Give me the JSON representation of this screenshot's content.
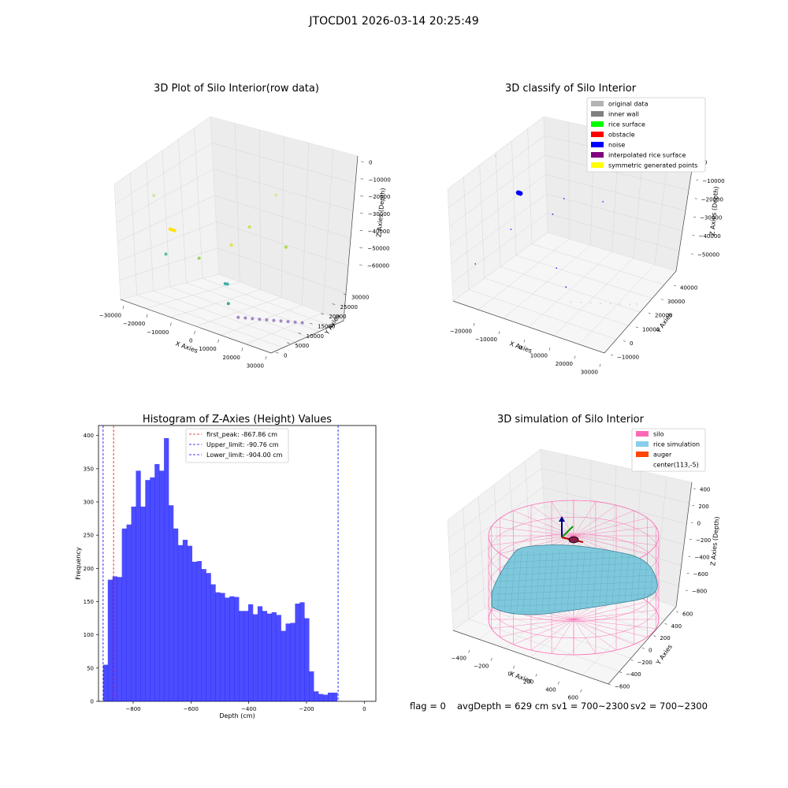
{
  "figure": {
    "suptitle": "JTOCD01 2026-03-14 20:25:49",
    "status": {
      "flag": "flag = 0",
      "avg": "avgDepth = 629 cm",
      "sv1": "sv1 = 700~2300",
      "sv2": "sv2 = 700~2300"
    }
  },
  "chart_data": [
    {
      "type": "scatter",
      "projection": "3d",
      "title": "3D Plot of Silo Interior(row data)",
      "xlabel": "X Axies",
      "ylabel": "Y Axies",
      "zlabel": "Z Axies (Depth)",
      "xticks": [
        "−30000",
        "−20000",
        "−10000",
        "0",
        "10000",
        "20000",
        "30000"
      ],
      "yticks": [
        "0",
        "5000",
        "10000",
        "15000",
        "20000",
        "25000",
        "30000"
      ],
      "zticks": [
        "0",
        "−10000",
        "−20000",
        "−30000",
        "−40000",
        "−50000",
        "−60000"
      ],
      "points": [
        {
          "x": -28000,
          "y": 12000,
          "z": -10000,
          "color": "#c9e6a0"
        },
        {
          "x": -25000,
          "y": 15000,
          "z": -30000,
          "color": "#ffe100"
        },
        {
          "x": -24500,
          "y": 15000,
          "z": -30000,
          "color": "#ffe100"
        },
        {
          "x": -24000,
          "y": 15000,
          "z": -30000,
          "color": "#ffe100"
        },
        {
          "x": -23500,
          "y": 15000,
          "z": -30000,
          "color": "#ffe100"
        },
        {
          "x": -23000,
          "y": 15000,
          "z": -30000,
          "color": "#ffe100"
        },
        {
          "x": -22000,
          "y": 10000,
          "z": -40000,
          "color": "#49b89a"
        },
        {
          "x": -12000,
          "y": 14000,
          "z": -40000,
          "color": "#8dd14a"
        },
        {
          "x": -2000,
          "y": 18000,
          "z": -30000,
          "color": "#dbe33a"
        },
        {
          "x": 2000,
          "y": 22000,
          "z": -20000,
          "color": "#c8e03c"
        },
        {
          "x": 10000,
          "y": 26000,
          "z": 0,
          "color": "#dde88a"
        },
        {
          "x": 12000,
          "y": 27000,
          "z": -30000,
          "color": "#a8d63f"
        },
        {
          "x": 3000,
          "y": 10000,
          "z": -45000,
          "color": "#2fa8a0"
        },
        {
          "x": 3800,
          "y": 10200,
          "z": -45000,
          "color": "#2fa8a0"
        },
        {
          "x": 5000,
          "y": 9000,
          "z": -55000,
          "color": "#26a080"
        },
        {
          "x": 10000,
          "y": 8000,
          "z": -60000,
          "color": "#9b7bbf"
        },
        {
          "x": 12000,
          "y": 9000,
          "z": -60000,
          "color": "#9b7bbf"
        },
        {
          "x": 14000,
          "y": 10000,
          "z": -60000,
          "color": "#9b7bbf"
        },
        {
          "x": 16000,
          "y": 11000,
          "z": -60000,
          "color": "#9b7bbf"
        },
        {
          "x": 18000,
          "y": 12000,
          "z": -60000,
          "color": "#9b7bbf"
        },
        {
          "x": 20000,
          "y": 13000,
          "z": -60000,
          "color": "#9b7bbf"
        },
        {
          "x": 22000,
          "y": 14000,
          "z": -60000,
          "color": "#9b7bbf"
        },
        {
          "x": 24000,
          "y": 15000,
          "z": -60000,
          "color": "#9b7bbf"
        },
        {
          "x": 26000,
          "y": 16000,
          "z": -60000,
          "color": "#9b7bbf"
        },
        {
          "x": 28000,
          "y": 17000,
          "z": -60000,
          "color": "#9b7bbf"
        }
      ]
    },
    {
      "type": "scatter",
      "projection": "3d",
      "title": "3D classify of Silo Interior",
      "xlabel": "X Axies",
      "ylabel": "Y Axies",
      "zlabel": "Z Axies (Depth)",
      "xticks": [
        "−20000",
        "−10000",
        "0",
        "10000",
        "20000",
        "30000"
      ],
      "yticks": [
        "−10000",
        "0",
        "10000",
        "20000",
        "30000",
        "40000"
      ],
      "zticks": [
        "0",
        "−10000",
        "−20000",
        "−30000",
        "−40000",
        "−50000"
      ],
      "legend": {
        "placement": "top-right",
        "items": [
          {
            "label": "original data",
            "color": "#b3b3b3"
          },
          {
            "label": "inner wall",
            "color": "#808080"
          },
          {
            "label": "rice surface",
            "color": "#00ff00"
          },
          {
            "label": "obstacle",
            "color": "#ff0000"
          },
          {
            "label": "noise",
            "color": "#0000ff"
          },
          {
            "label": "interpolated rice surface",
            "color": "#800080"
          },
          {
            "label": "symmetric generated points",
            "color": "#ffff00"
          }
        ]
      },
      "points": [
        {
          "x": -22000,
          "y": 18000,
          "z": -3000,
          "color": "#b3b3b3",
          "r": 0.8
        },
        {
          "x": -15000,
          "y": 20000,
          "z": -20000,
          "color": "#0000ff",
          "r": 3
        },
        {
          "x": -14600,
          "y": 20000,
          "z": -20000,
          "color": "#0000ff",
          "r": 3
        },
        {
          "x": -14200,
          "y": 20000,
          "z": -20000,
          "color": "#0000ff",
          "r": 3
        },
        {
          "x": -12000,
          "y": 8000,
          "z": -28000,
          "color": "#0000ff",
          "r": 0.8
        },
        {
          "x": -20000,
          "y": -4000,
          "z": -40000,
          "color": "#0000ff",
          "r": 0.8
        },
        {
          "x": 0,
          "y": 25000,
          "z": -20000,
          "color": "#0000ff",
          "r": 0.8
        },
        {
          "x": -2000,
          "y": 20000,
          "z": -25000,
          "color": "#0000ff",
          "r": 0.8
        },
        {
          "x": 8000,
          "y": 38000,
          "z": -28000,
          "color": "#0000ff",
          "r": 0.8
        },
        {
          "x": 5000,
          "y": 8000,
          "z": -40000,
          "color": "#0000ff",
          "r": 0.8
        },
        {
          "x": 10000,
          "y": 5000,
          "z": -45000,
          "color": "#0000ff",
          "r": 0.8
        },
        {
          "x": 10000,
          "y": 8000,
          "z": -55000,
          "color": "#c7b3e6",
          "r": 0.7
        },
        {
          "x": 13000,
          "y": 9500,
          "z": -55000,
          "color": "#c7b3e6",
          "r": 0.7
        },
        {
          "x": 16000,
          "y": 11000,
          "z": -55000,
          "color": "#c7b3e6",
          "r": 0.7
        },
        {
          "x": 19000,
          "y": 12500,
          "z": -55000,
          "color": "#c7b3e6",
          "r": 0.7
        },
        {
          "x": 22000,
          "y": 14000,
          "z": -55000,
          "color": "#c7b3e6",
          "r": 0.7
        },
        {
          "x": 25000,
          "y": 15500,
          "z": -55000,
          "color": "#c7b3e6",
          "r": 0.7
        },
        {
          "x": 28000,
          "y": 17000,
          "z": -55000,
          "color": "#c7b3e6",
          "r": 0.7
        },
        {
          "x": 30000,
          "y": 18500,
          "z": -55000,
          "color": "#c7b3e6",
          "r": 0.7
        }
      ]
    },
    {
      "type": "bar",
      "title": "Histogram of Z-Axies (Height) Values",
      "xlabel": "Depth (cm)",
      "ylabel": "Frequency",
      "xlim": [
        -920,
        40
      ],
      "ylim": [
        0,
        415
      ],
      "xticks": [
        -800,
        -600,
        -400,
        -200,
        0
      ],
      "yticks": [
        0,
        50,
        100,
        150,
        200,
        250,
        300,
        350,
        400
      ],
      "bar_color": "#0000ff",
      "bin_start": -904,
      "bin_width": 16.2,
      "values": [
        55,
        183,
        188,
        187,
        260,
        266,
        293,
        347,
        293,
        333,
        337,
        357,
        347,
        396,
        295,
        260,
        235,
        243,
        234,
        210,
        211,
        199,
        193,
        176,
        164,
        163,
        156,
        158,
        157,
        136,
        136,
        146,
        131,
        143,
        136,
        132,
        134,
        130,
        106,
        117,
        118,
        147,
        149,
        125,
        45,
        15,
        11,
        10,
        13,
        13
      ],
      "vlines": [
        {
          "x": -867.86,
          "color": "#ff0000",
          "label": "first_peak: -867.86 cm"
        },
        {
          "x": -90.76,
          "color": "#0000ff",
          "label": "Upper_limit: -90.76 cm"
        },
        {
          "x": -904.0,
          "color": "#0000ff",
          "label": "Lower_limit: -904.00 cm"
        }
      ],
      "legend_placement": "upper center"
    },
    {
      "type": "surface",
      "projection": "3d",
      "title": "3D simulation of Silo Interior",
      "xlabel": "X Axies",
      "ylabel": "Y Axies",
      "zlabel": "Z Axies (Depth)",
      "xticks": [
        "−400",
        "−200",
        "0",
        "200",
        "400",
        "600"
      ],
      "yticks": [
        "−600",
        "−400",
        "−200",
        "0",
        "200",
        "400",
        "600"
      ],
      "zticks": [
        "400",
        "200",
        "0",
        "−200",
        "−400",
        "−600",
        "−800"
      ],
      "legend": {
        "placement": "top-right",
        "items": [
          {
            "label": "silo",
            "color": "#ff69b4"
          },
          {
            "label": "rice simulation",
            "color": "#87ceeb"
          },
          {
            "label": "auger",
            "color": "#ff4500"
          },
          {
            "label": "center(113,-5)",
            "color": ""
          }
        ]
      },
      "silo_color": "#ff69b4",
      "rice_color": "#7fc8dc"
    }
  ]
}
